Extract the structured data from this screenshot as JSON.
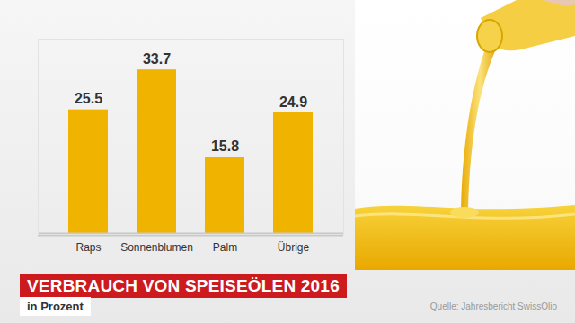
{
  "chart_data": {
    "type": "bar",
    "title": "VERBRAUCH VON SPEISEÖLEN 2016",
    "subtitle": "in Prozent",
    "source": "Quelle: Jahresbericht SwissOlio",
    "categories": [
      "Raps",
      "Sonnenblumen",
      "Palm",
      "Übrige"
    ],
    "values": [
      25.5,
      33.7,
      15.8,
      24.9
    ],
    "color": "#f0b400",
    "ylim": [
      0,
      40
    ],
    "data_labels": true,
    "tick_labels": "x",
    "grid": false
  }
}
